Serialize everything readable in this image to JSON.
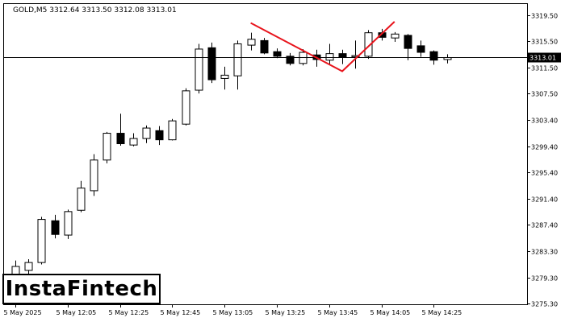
{
  "header": {
    "symbol_info": "GOLD,M5  3312.64 3313.50 3312.08 3313.01"
  },
  "watermark": {
    "text": "InstaFintech"
  },
  "colors": {
    "pattern_line": "#e8141c",
    "candle": "#000000",
    "background": "#ffffff"
  },
  "chart_data": {
    "type": "candlestick",
    "symbol": "GOLD",
    "timeframe": "M5",
    "ohlc_header": {
      "open": 3312.64,
      "high": 3313.5,
      "low": 3312.08,
      "close": 3313.01
    },
    "current_price": 3313.01,
    "current_price_label": "3313.01",
    "ylim": [
      3275.2,
      3321.2
    ],
    "y_ticks": [
      "3319.50",
      "3315.50",
      "3311.50",
      "3307.50",
      "3303.40",
      "3299.40",
      "3295.40",
      "3291.40",
      "3287.40",
      "3283.30",
      "3279.30",
      "3275.30"
    ],
    "x_ticks": [
      {
        "label": "5 May 2025",
        "index": 0
      },
      {
        "label": "5 May 12:05",
        "index": 4
      },
      {
        "label": "5 May 12:25",
        "index": 8
      },
      {
        "label": "5 May 12:45",
        "index": 12
      },
      {
        "label": "5 May 13:05",
        "index": 16
      },
      {
        "label": "5 May 13:25",
        "index": 20
      },
      {
        "label": "5 May 13:45",
        "index": 24
      },
      {
        "label": "5 May 14:05",
        "index": 28
      },
      {
        "label": "5 May 14:25",
        "index": 32
      }
    ],
    "candles": [
      {
        "o": 3279.8,
        "h": 3281.9,
        "l": 3279.3,
        "c": 3281.0
      },
      {
        "o": 3280.4,
        "h": 3282.1,
        "l": 3279.8,
        "c": 3281.6
      },
      {
        "o": 3281.6,
        "h": 3288.6,
        "l": 3281.3,
        "c": 3288.2
      },
      {
        "o": 3288.0,
        "h": 3288.9,
        "l": 3285.3,
        "c": 3285.9
      },
      {
        "o": 3285.8,
        "h": 3289.7,
        "l": 3285.2,
        "c": 3289.4
      },
      {
        "o": 3289.6,
        "h": 3294.1,
        "l": 3289.3,
        "c": 3293.0
      },
      {
        "o": 3292.6,
        "h": 3298.2,
        "l": 3291.8,
        "c": 3297.3
      },
      {
        "o": 3297.3,
        "h": 3301.6,
        "l": 3296.8,
        "c": 3301.4
      },
      {
        "o": 3301.4,
        "h": 3304.4,
        "l": 3299.5,
        "c": 3299.8
      },
      {
        "o": 3299.6,
        "h": 3301.4,
        "l": 3299.4,
        "c": 3300.6
      },
      {
        "o": 3300.6,
        "h": 3302.6,
        "l": 3299.9,
        "c": 3302.2
      },
      {
        "o": 3301.8,
        "h": 3302.5,
        "l": 3299.6,
        "c": 3300.4
      },
      {
        "o": 3300.4,
        "h": 3303.6,
        "l": 3300.3,
        "c": 3303.3
      },
      {
        "o": 3302.8,
        "h": 3308.3,
        "l": 3302.6,
        "c": 3307.9
      },
      {
        "o": 3308.0,
        "h": 3315.1,
        "l": 3307.5,
        "c": 3314.3
      },
      {
        "o": 3314.5,
        "h": 3315.3,
        "l": 3309.1,
        "c": 3309.6
      },
      {
        "o": 3309.8,
        "h": 3311.6,
        "l": 3308.1,
        "c": 3310.3
      },
      {
        "o": 3310.2,
        "h": 3315.6,
        "l": 3308.1,
        "c": 3315.1
      },
      {
        "o": 3314.9,
        "h": 3316.8,
        "l": 3314.1,
        "c": 3315.8
      },
      {
        "o": 3315.6,
        "h": 3316.0,
        "l": 3313.5,
        "c": 3313.7
      },
      {
        "o": 3313.9,
        "h": 3314.4,
        "l": 3312.9,
        "c": 3313.2
      },
      {
        "o": 3313.2,
        "h": 3313.7,
        "l": 3311.8,
        "c": 3312.1
      },
      {
        "o": 3312.1,
        "h": 3314.3,
        "l": 3311.8,
        "c": 3313.8
      },
      {
        "o": 3313.4,
        "h": 3314.2,
        "l": 3311.6,
        "c": 3312.7
      },
      {
        "o": 3312.6,
        "h": 3315.1,
        "l": 3312.0,
        "c": 3313.6
      },
      {
        "o": 3313.6,
        "h": 3314.2,
        "l": 3312.0,
        "c": 3313.0
      },
      {
        "o": 3313.1,
        "h": 3315.6,
        "l": 3311.3,
        "c": 3313.3
      },
      {
        "o": 3313.2,
        "h": 3317.2,
        "l": 3312.8,
        "c": 3316.8
      },
      {
        "o": 3316.8,
        "h": 3317.4,
        "l": 3315.6,
        "c": 3316.1
      },
      {
        "o": 3316.0,
        "h": 3316.9,
        "l": 3315.4,
        "c": 3316.6
      },
      {
        "o": 3316.4,
        "h": 3316.6,
        "l": 3312.6,
        "c": 3314.4
      },
      {
        "o": 3314.8,
        "h": 3315.6,
        "l": 3313.1,
        "c": 3313.8
      },
      {
        "o": 3313.9,
        "h": 3314.1,
        "l": 3311.9,
        "c": 3312.6
      },
      {
        "o": 3312.7,
        "h": 3313.5,
        "l": 3312.1,
        "c": 3313.0
      }
    ],
    "pattern": {
      "name": "Double Top",
      "points": [
        {
          "index": 18,
          "price": 3318.3
        },
        {
          "index": 25,
          "price": 3310.9
        },
        {
          "index": 29,
          "price": 3318.5
        }
      ]
    }
  }
}
